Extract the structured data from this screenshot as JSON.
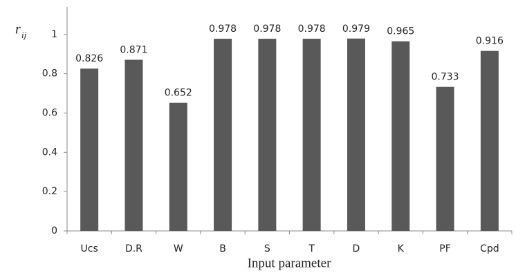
{
  "chart_data": {
    "type": "bar",
    "x_label": "Input parameter",
    "y_label": "r",
    "y_label_sub": "ij",
    "categories": [
      "Ucs",
      "D.R",
      "W",
      "B",
      "S",
      "T",
      "D",
      "K",
      "PF",
      "Cpd"
    ],
    "values": [
      0.826,
      0.871,
      0.652,
      0.978,
      0.978,
      0.978,
      0.979,
      0.965,
      0.733,
      0.916
    ],
    "color": "#595959",
    "ylim": [
      0,
      1.14
    ],
    "yticks": [
      0,
      0.2,
      0.4,
      0.6,
      0.8,
      1
    ],
    "grid": false,
    "data_labels": true
  }
}
